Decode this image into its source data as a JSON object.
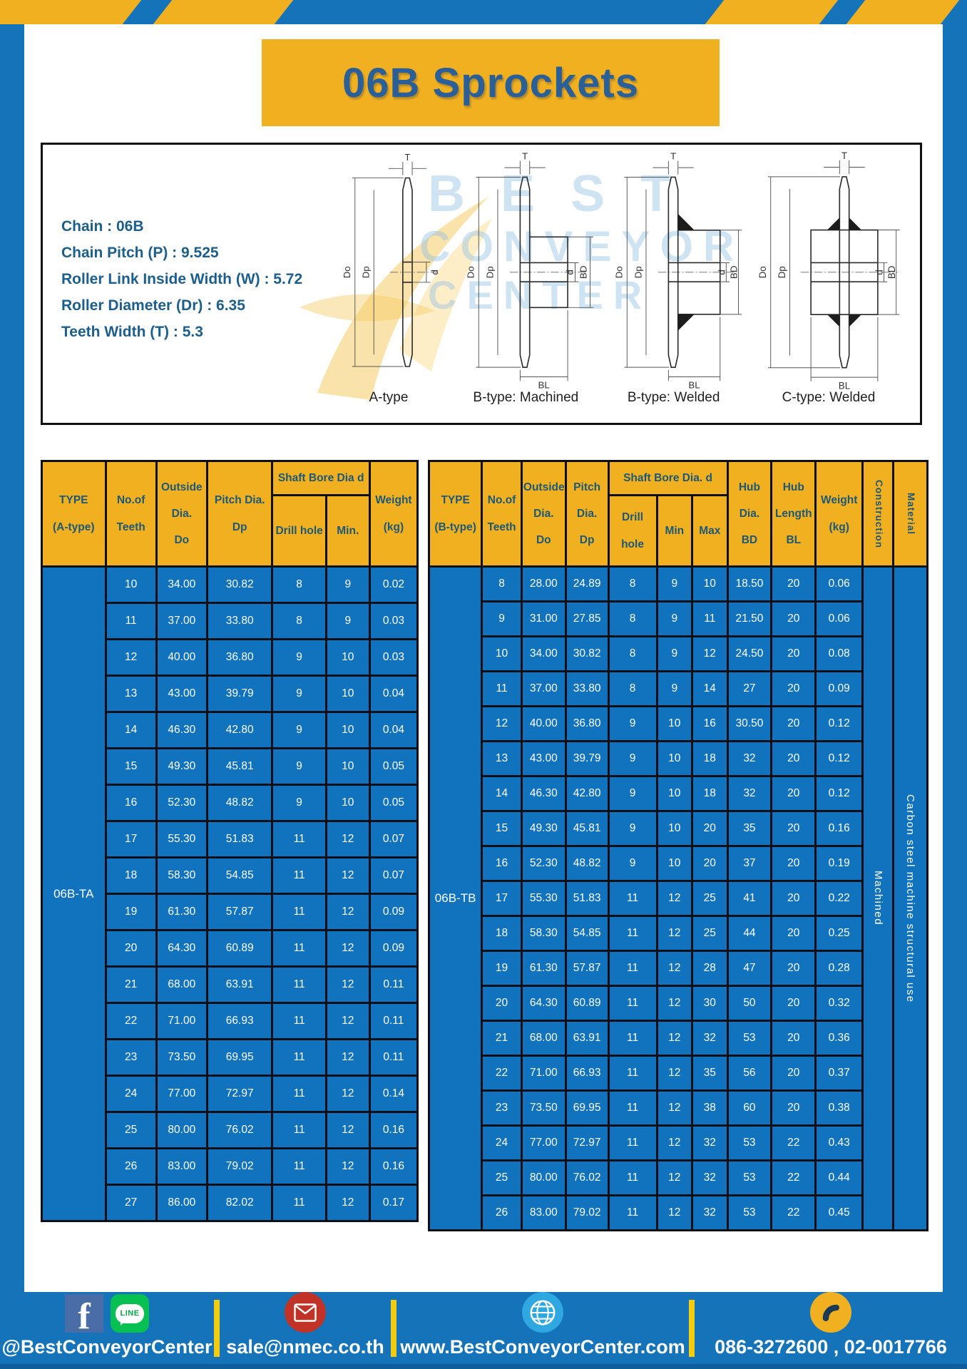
{
  "page": {
    "title": "06B Sprockets"
  },
  "colors": {
    "frame_blue": "#1573BA",
    "cell_blue": "#1173BD",
    "accent_yellow": "#F0B01F",
    "separator_yellow": "#F3CC0F",
    "navy_text": "#1E5C86",
    "cell_text": "#FFFFFF"
  },
  "specs": {
    "lines": [
      "Chain  :  06B",
      "Chain Pitch (P)  :  9.525",
      "Roller Link Inside Width (W)  :  5.72",
      "Roller Diameter (Dr)  : 6.35",
      "Teeth Width (T)  :  5.3"
    ]
  },
  "diagrams": {
    "labels": [
      "A-type",
      "B-type: Machined",
      "B-type: Welded",
      "C-type: Welded"
    ],
    "dims": {
      "t": "T",
      "outside": "Do",
      "pitch": "Dp",
      "bore": "d",
      "hub_dia": "BD",
      "hub_len": "BL"
    }
  },
  "watermark": {
    "lines": [
      "BEST",
      "CONVEYOR",
      "CENTER"
    ]
  },
  "table_a": {
    "headers": {
      "type": "TYPE\n(A-type)",
      "teeth": "No.of\nTeeth",
      "outside": "Outside\nDia.\nDo",
      "pitch": "Pitch Dia.\nDp",
      "shaft_bore": "Shaft Bore Dia d",
      "drill": "Drill hole",
      "min": "Min.",
      "weight": "Weight\n(kg)"
    },
    "type_label": "06B-TA",
    "rows": [
      [
        "10",
        "34.00",
        "30.82",
        "8",
        "9",
        "0.02"
      ],
      [
        "11",
        "37.00",
        "33.80",
        "8",
        "9",
        "0.03"
      ],
      [
        "12",
        "40.00",
        "36.80",
        "9",
        "10",
        "0.03"
      ],
      [
        "13",
        "43.00",
        "39.79",
        "9",
        "10",
        "0.04"
      ],
      [
        "14",
        "46.30",
        "42.80",
        "9",
        "10",
        "0.04"
      ],
      [
        "15",
        "49.30",
        "45.81",
        "9",
        "10",
        "0.05"
      ],
      [
        "16",
        "52.30",
        "48.82",
        "9",
        "10",
        "0.05"
      ],
      [
        "17",
        "55.30",
        "51.83",
        "11",
        "12",
        "0.07"
      ],
      [
        "18",
        "58.30",
        "54.85",
        "11",
        "12",
        "0.07"
      ],
      [
        "19",
        "61.30",
        "57.87",
        "11",
        "12",
        "0.09"
      ],
      [
        "20",
        "64.30",
        "60.89",
        "11",
        "12",
        "0.09"
      ],
      [
        "21",
        "68.00",
        "63.91",
        "11",
        "12",
        "0.11"
      ],
      [
        "22",
        "71.00",
        "66.93",
        "11",
        "12",
        "0.11"
      ],
      [
        "23",
        "73.50",
        "69.95",
        "11",
        "12",
        "0.11"
      ],
      [
        "24",
        "77.00",
        "72.97",
        "11",
        "12",
        "0.14"
      ],
      [
        "25",
        "80.00",
        "76.02",
        "11",
        "12",
        "0.16"
      ],
      [
        "26",
        "83.00",
        "79.02",
        "11",
        "12",
        "0.16"
      ],
      [
        "27",
        "86.00",
        "82.02",
        "11",
        "12",
        "0.17"
      ]
    ]
  },
  "table_b": {
    "headers": {
      "type": "TYPE\n(B-type)",
      "teeth": "No.of\nTeeth",
      "outside": "Outside\nDia.\nDo",
      "pitch": "Pitch\nDia.\nDp",
      "shaft_bore": "Shaft Bore Dia.  d",
      "drill": "Drill hole",
      "min": "Min",
      "max": "Max",
      "hub_dia": "Hub\nDia.\nBD",
      "hub_len": "Hub\nLength\nBL",
      "weight": "Weight\n(kg)",
      "construction": "Construction",
      "material": "Material"
    },
    "type_label": "06B-TB",
    "construction_value": "Machined",
    "material_value": "Carbon steel machine structural use",
    "rows": [
      [
        "8",
        "28.00",
        "24.89",
        "8",
        "9",
        "10",
        "18.50",
        "20",
        "0.06"
      ],
      [
        "9",
        "31.00",
        "27.85",
        "8",
        "9",
        "11",
        "21.50",
        "20",
        "0.06"
      ],
      [
        "10",
        "34.00",
        "30.82",
        "8",
        "9",
        "12",
        "24.50",
        "20",
        "0.08"
      ],
      [
        "11",
        "37.00",
        "33.80",
        "8",
        "9",
        "14",
        "27",
        "20",
        "0.09"
      ],
      [
        "12",
        "40.00",
        "36.80",
        "9",
        "10",
        "16",
        "30.50",
        "20",
        "0.12"
      ],
      [
        "13",
        "43.00",
        "39.79",
        "9",
        "10",
        "18",
        "32",
        "20",
        "0.12"
      ],
      [
        "14",
        "46.30",
        "42.80",
        "9",
        "10",
        "18",
        "32",
        "20",
        "0.12"
      ],
      [
        "15",
        "49.30",
        "45.81",
        "9",
        "10",
        "20",
        "35",
        "20",
        "0.16"
      ],
      [
        "16",
        "52.30",
        "48.82",
        "9",
        "10",
        "20",
        "37",
        "20",
        "0.19"
      ],
      [
        "17",
        "55.30",
        "51.83",
        "11",
        "12",
        "25",
        "41",
        "20",
        "0.22"
      ],
      [
        "18",
        "58.30",
        "54.85",
        "11",
        "12",
        "25",
        "44",
        "20",
        "0.25"
      ],
      [
        "19",
        "61.30",
        "57.87",
        "11",
        "12",
        "28",
        "47",
        "20",
        "0.28"
      ],
      [
        "20",
        "64.30",
        "60.89",
        "11",
        "12",
        "30",
        "50",
        "20",
        "0.32"
      ],
      [
        "21",
        "68.00",
        "63.91",
        "11",
        "12",
        "32",
        "53",
        "20",
        "0.36"
      ],
      [
        "22",
        "71.00",
        "66.93",
        "11",
        "12",
        "35",
        "56",
        "20",
        "0.37"
      ],
      [
        "23",
        "73.50",
        "69.95",
        "11",
        "12",
        "38",
        "60",
        "20",
        "0.38"
      ],
      [
        "24",
        "77.00",
        "72.97",
        "11",
        "12",
        "32",
        "53",
        "22",
        "0.43"
      ],
      [
        "25",
        "80.00",
        "76.02",
        "11",
        "12",
        "32",
        "53",
        "22",
        "0.44"
      ],
      [
        "26",
        "83.00",
        "79.02",
        "11",
        "12",
        "32",
        "53",
        "22",
        "0.45"
      ]
    ]
  },
  "footer": {
    "facebook_letter": "f",
    "line_text": "LINE",
    "social_label": "@BestConveyorCenter",
    "email": "sale@nmec.co.th",
    "website": "www.BestConveyorCenter.com",
    "phones": "086-3272600 , 02-0017766"
  }
}
